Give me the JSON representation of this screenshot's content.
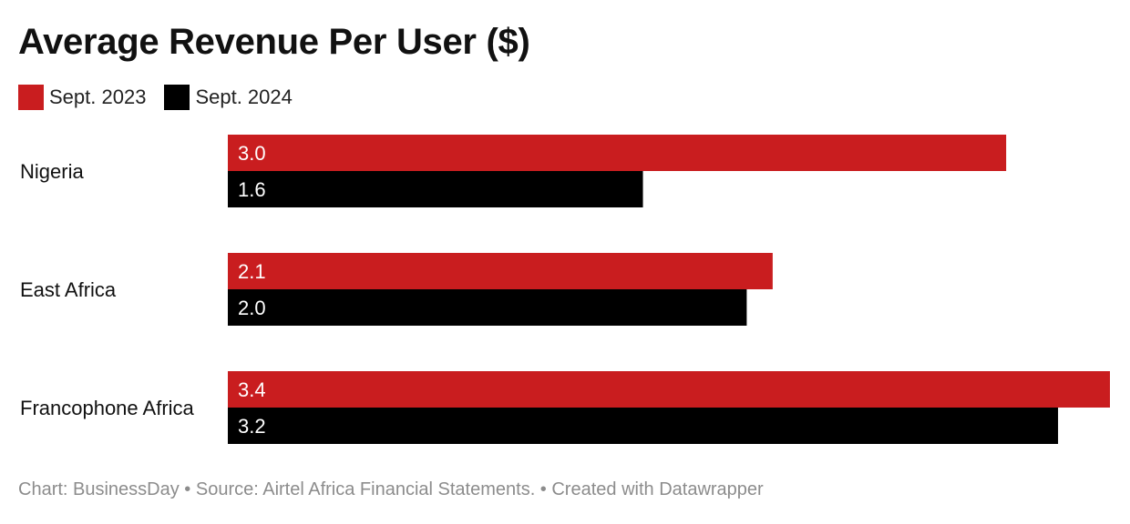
{
  "chart_data": {
    "type": "bar",
    "orientation": "horizontal",
    "title": "Average Revenue Per User ($)",
    "categories": [
      "Nigeria",
      "East Africa",
      "Francophone Africa"
    ],
    "series": [
      {
        "name": "Sept. 2023",
        "color": "#c91d1f",
        "values": [
          3.0,
          2.1,
          3.4
        ]
      },
      {
        "name": "Sept. 2024",
        "color": "#000000",
        "values": [
          1.6,
          2.0,
          3.2
        ]
      }
    ],
    "value_labels": [
      [
        "3.0",
        "2.1",
        "3.4"
      ],
      [
        "1.6",
        "2.0",
        "3.2"
      ]
    ],
    "xlim": [
      0,
      3.4
    ],
    "grid": false,
    "legend_position": "top-left",
    "xlabel": "",
    "ylabel": ""
  },
  "footer": {
    "text": "Chart: BusinessDay • Source: Airtel Africa Financial Statements.  • Created with Datawrapper"
  }
}
